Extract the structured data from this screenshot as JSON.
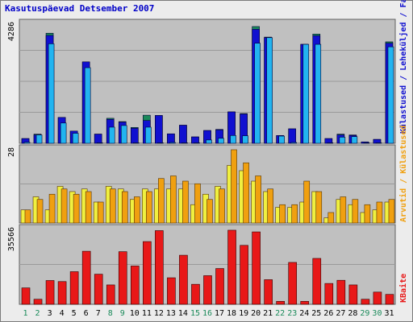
{
  "title": "Kasutuspäevad Detsember 2007",
  "colors": {
    "plot_bg": "#c0c0c0",
    "grid": "#9a9a9a",
    "visits": "#1a8a5a",
    "pages": "#1010d0",
    "hits": "#22b4f0",
    "bandwidth": "#f0a010",
    "files_alt": "#f0f040",
    "kbytes": "#e81818",
    "weekend_label": "#1a8a5a",
    "weekday_label": "#000000"
  },
  "chart_data": [
    {
      "type": "bar",
      "categories": [
        "1",
        "2",
        "3",
        "4",
        "5",
        "6",
        "7",
        "8",
        "9",
        "10",
        "11",
        "12",
        "13",
        "14",
        "15",
        "16",
        "17",
        "18",
        "19",
        "20",
        "21",
        "22",
        "23",
        "24",
        "25",
        "26",
        "27",
        "28",
        "29",
        "30",
        "31"
      ],
      "weekend_days": [
        "1",
        "2",
        "8",
        "9",
        "15",
        "16",
        "22",
        "23",
        "29",
        "30"
      ],
      "ylabel": "4286",
      "ylim": [
        0,
        4286
      ],
      "series": [
        {
          "name": "Külastused",
          "values": [
            170,
            330,
            3960,
            930,
            440,
            2920,
            330,
            900,
            780,
            570,
            1010,
            1000,
            340,
            650,
            230,
            460,
            500,
            1130,
            1070,
            4200,
            3820,
            280,
            520,
            3560,
            3930,
            170,
            330,
            300,
            50,
            140,
            3650
          ]
        },
        {
          "name": "Leheküljed",
          "values": [
            170,
            300,
            3880,
            930,
            440,
            2930,
            330,
            860,
            760,
            540,
            820,
            1000,
            340,
            650,
            230,
            460,
            480,
            1130,
            1050,
            4100,
            3800,
            280,
            520,
            3560,
            3870,
            170,
            300,
            280,
            50,
            140,
            3600
          ]
        },
        {
          "name": "Failid",
          "values": [
            40,
            300,
            3580,
            730,
            360,
            2720,
            20,
            580,
            640,
            20,
            580,
            20,
            30,
            20,
            20,
            120,
            180,
            280,
            270,
            3600,
            3800,
            260,
            30,
            3560,
            3560,
            20,
            220,
            240,
            20,
            20,
            3470
          ]
        }
      ]
    },
    {
      "type": "bar",
      "categories": [
        "1",
        "2",
        "3",
        "4",
        "5",
        "6",
        "7",
        "8",
        "9",
        "10",
        "11",
        "12",
        "13",
        "14",
        "15",
        "16",
        "17",
        "18",
        "19",
        "20",
        "21",
        "22",
        "23",
        "24",
        "25",
        "26",
        "27",
        "28",
        "29",
        "30",
        "31"
      ],
      "ylabel": "28",
      "ylim": [
        0,
        28
      ],
      "series": [
        {
          "name": "Külastused",
          "values": [
            5,
            10,
            5,
            14,
            12,
            13,
            8,
            14,
            13,
            9,
            13,
            13,
            13,
            13,
            7,
            11,
            14,
            22,
            20,
            16,
            12,
            6,
            6,
            8,
            12,
            2,
            9,
            7,
            4,
            5,
            8
          ]
        },
        {
          "name": "Arvutid",
          "values": [
            5,
            9,
            11,
            13,
            11,
            12,
            8,
            13,
            12,
            10,
            12,
            17,
            18,
            16,
            15,
            9,
            13,
            28,
            23,
            18,
            13,
            7,
            7,
            16,
            12,
            4,
            10,
            9,
            7,
            8,
            9
          ]
        }
      ]
    },
    {
      "type": "bar",
      "categories": [
        "1",
        "2",
        "3",
        "4",
        "5",
        "6",
        "7",
        "8",
        "9",
        "10",
        "11",
        "12",
        "13",
        "14",
        "15",
        "16",
        "17",
        "18",
        "19",
        "20",
        "21",
        "22",
        "23",
        "24",
        "25",
        "26",
        "27",
        "28",
        "29",
        "30",
        "31"
      ],
      "ylabel": "35566",
      "ylim": [
        0,
        35566
      ],
      "series": [
        {
          "name": "KBaite",
          "values": [
            7800,
            2400,
            11300,
            10800,
            15500,
            25200,
            14300,
            9200,
            25000,
            18200,
            29800,
            35000,
            12600,
            23300,
            9500,
            13600,
            17000,
            35200,
            28000,
            34400,
            11700,
            1400,
            19900,
            1400,
            21800,
            9900,
            11400,
            9200,
            2400,
            5800,
            4700
          ]
        }
      ]
    }
  ],
  "legend": {
    "top_right": "Külastused / Leheküljed / Failid",
    "middle_right": "Arvutid / Külastused",
    "bottom_right": "KBaite"
  }
}
